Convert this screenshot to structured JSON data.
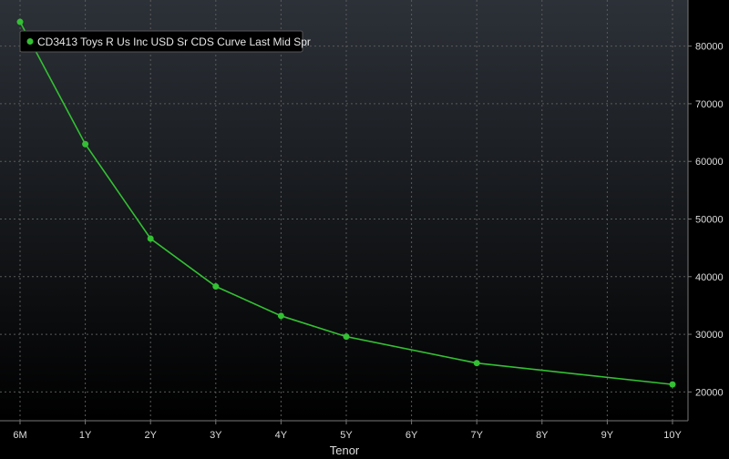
{
  "colors": {
    "background_top": "#2c3138",
    "background_bottom": "#000000",
    "series": "#33c033",
    "grid": "#5a5a5a",
    "text": "#dddddd"
  },
  "chart_data": {
    "type": "line",
    "title": "",
    "xlabel": "Tenor",
    "ylabel": "",
    "grid": true,
    "legend_position": "top-left",
    "y_axis_side": "right",
    "categories": [
      "6M",
      "1Y",
      "2Y",
      "3Y",
      "4Y",
      "5Y",
      "6Y",
      "7Y",
      "8Y",
      "9Y",
      "10Y"
    ],
    "ylim": [
      15000,
      88000
    ],
    "yticks": [
      20000,
      30000,
      40000,
      50000,
      60000,
      70000,
      80000
    ],
    "series": [
      {
        "name": "CD3413 Toys R Us Inc USD Sr CDS Curve Last Mid Spr",
        "color": "#33c033",
        "values": [
          84200,
          63000,
          46600,
          38300,
          33200,
          29600,
          null,
          25000,
          null,
          null,
          21300
        ]
      }
    ]
  }
}
